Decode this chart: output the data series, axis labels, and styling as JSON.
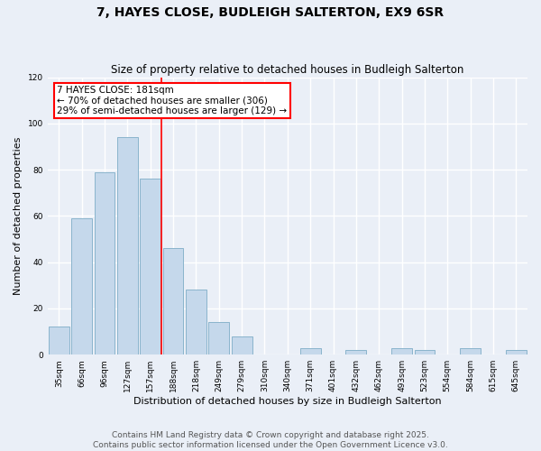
{
  "title": "7, HAYES CLOSE, BUDLEIGH SALTERTON, EX9 6SR",
  "subtitle": "Size of property relative to detached houses in Budleigh Salterton",
  "xlabel": "Distribution of detached houses by size in Budleigh Salterton",
  "ylabel": "Number of detached properties",
  "bins": [
    "35sqm",
    "66sqm",
    "96sqm",
    "127sqm",
    "157sqm",
    "188sqm",
    "218sqm",
    "249sqm",
    "279sqm",
    "310sqm",
    "340sqm",
    "371sqm",
    "401sqm",
    "432sqm",
    "462sqm",
    "493sqm",
    "523sqm",
    "554sqm",
    "584sqm",
    "615sqm",
    "645sqm"
  ],
  "values": [
    12,
    59,
    79,
    94,
    76,
    46,
    28,
    14,
    8,
    0,
    0,
    3,
    0,
    2,
    0,
    3,
    2,
    0,
    3,
    0,
    2
  ],
  "bar_color": "#c5d8eb",
  "bar_edge_color": "#8ab4cc",
  "vline_x_index": 5,
  "vline_color": "red",
  "annotation_line1": "7 HAYES CLOSE: 181sqm",
  "annotation_line2": "← 70% of detached houses are smaller (306)",
  "annotation_line3": "29% of semi-detached houses are larger (129) →",
  "annotation_box_color": "white",
  "annotation_box_edge_color": "red",
  "ylim": [
    0,
    120
  ],
  "yticks": [
    0,
    20,
    40,
    60,
    80,
    100,
    120
  ],
  "bg_color": "#eaeff7",
  "grid_color": "white",
  "footer_line1": "Contains HM Land Registry data © Crown copyright and database right 2025.",
  "footer_line2": "Contains public sector information licensed under the Open Government Licence v3.0.",
  "title_fontsize": 10,
  "subtitle_fontsize": 8.5,
  "xlabel_fontsize": 8,
  "ylabel_fontsize": 8,
  "tick_fontsize": 6.5,
  "footer_fontsize": 6.5,
  "annotation_fontsize": 7.5
}
